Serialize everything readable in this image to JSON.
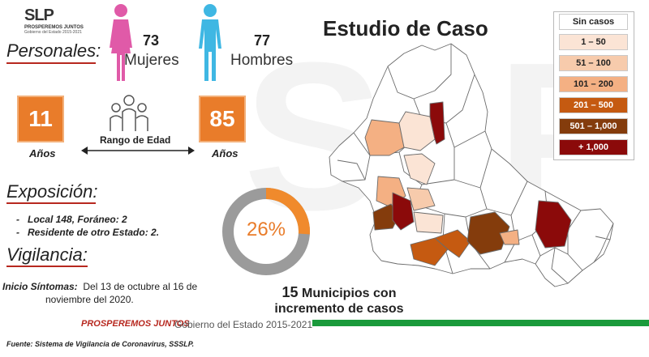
{
  "logo": {
    "main": "SLP",
    "sub": "PROSPEREMOS JUNTOS",
    "sub2": "Gobierno del Estado 2015-2021"
  },
  "personales": {
    "title": "Personales:",
    "women_count": "73",
    "women_label": "Mujeres",
    "men_count": "77",
    "men_label": "Hombres"
  },
  "age": {
    "min": "11",
    "max": "85",
    "min_unit": "Años",
    "max_unit": "Años",
    "range_label": "Rango de Edad"
  },
  "exposicion": {
    "title": "Exposición:",
    "items": [
      "Local  148, Foráneo: 2",
      "Residente de otro Estado: 2."
    ]
  },
  "vigilancia": {
    "title": "Vigilancia:",
    "sintomas_label": "Inicio Síntomas:",
    "sintomas_text_1": "Del 13 de octubre al 16 de",
    "sintomas_text_2": "noviembre del 2020."
  },
  "donut": {
    "percent_label": "26%",
    "percent_value": 26,
    "color_fill": "#f08a2c",
    "color_rest": "#9b9b9b"
  },
  "main_title": "Estudio de Caso",
  "municipios": {
    "line1_num": "15",
    "line1_text": "Municipios con",
    "line2": "incremento de casos"
  },
  "legend": [
    {
      "label": "Sin casos",
      "color": "#ffffff",
      "text_color": "#222222"
    },
    {
      "label": "1 – 50",
      "color": "#fbe4d5",
      "text_color": "#222222"
    },
    {
      "label": "51 – 100",
      "color": "#f7cbac",
      "text_color": "#222222"
    },
    {
      "label": "101 – 200",
      "color": "#f4b083",
      "text_color": "#222222"
    },
    {
      "label": "201 – 500",
      "color": "#c55a11",
      "text_color": "#ffffff"
    },
    {
      "label": "501 – 1,000",
      "color": "#843c0c",
      "text_color": "#ffffff"
    },
    {
      "label": "+ 1,000",
      "color": "#8b0a0a",
      "text_color": "#ffffff"
    }
  ],
  "footer": {
    "prosperemos": "PROSPEREMOS JUNTOS",
    "gobierno": "Gobierno del Estado 2015-2021",
    "fuente": "Fuente: Sistema de Vigilancia de Coronavirus, SSSLP."
  },
  "colors": {
    "accent_red": "#b7281f",
    "accent_orange": "#e97c2a",
    "green": "#1a9a3b",
    "pink_figure": "#e05aa8",
    "blue_figure": "#3fb7e3"
  }
}
